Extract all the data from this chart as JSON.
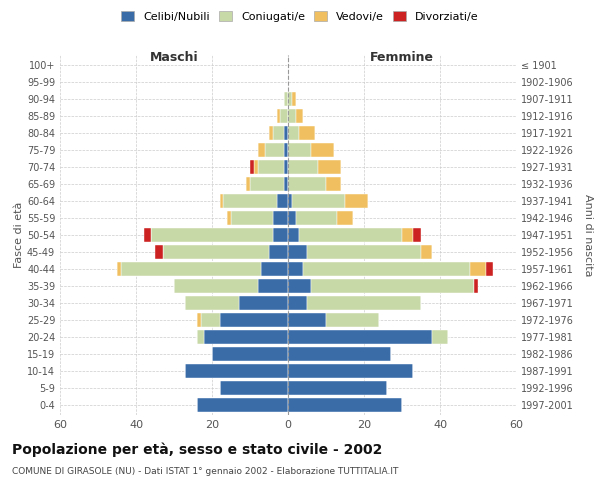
{
  "age_groups": [
    "0-4",
    "5-9",
    "10-14",
    "15-19",
    "20-24",
    "25-29",
    "30-34",
    "35-39",
    "40-44",
    "45-49",
    "50-54",
    "55-59",
    "60-64",
    "65-69",
    "70-74",
    "75-79",
    "80-84",
    "85-89",
    "90-94",
    "95-99",
    "100+"
  ],
  "birth_years": [
    "1997-2001",
    "1992-1996",
    "1987-1991",
    "1982-1986",
    "1977-1981",
    "1972-1976",
    "1967-1971",
    "1962-1966",
    "1957-1961",
    "1952-1956",
    "1947-1951",
    "1942-1946",
    "1937-1941",
    "1932-1936",
    "1927-1931",
    "1922-1926",
    "1917-1921",
    "1912-1916",
    "1907-1911",
    "1902-1906",
    "≤ 1901"
  ],
  "male_celibe": [
    24,
    18,
    27,
    20,
    22,
    18,
    13,
    8,
    7,
    5,
    4,
    4,
    3,
    1,
    1,
    1,
    1,
    0,
    0,
    0,
    0
  ],
  "male_coniugato": [
    0,
    0,
    0,
    0,
    2,
    5,
    14,
    22,
    37,
    28,
    32,
    11,
    14,
    9,
    7,
    5,
    3,
    2,
    1,
    0,
    0
  ],
  "male_vedovo": [
    0,
    0,
    0,
    0,
    0,
    1,
    0,
    0,
    1,
    0,
    0,
    1,
    1,
    1,
    1,
    2,
    1,
    1,
    0,
    0,
    0
  ],
  "male_divorziato": [
    0,
    0,
    0,
    0,
    0,
    0,
    0,
    0,
    0,
    2,
    2,
    0,
    0,
    0,
    1,
    0,
    0,
    0,
    0,
    0,
    0
  ],
  "female_celibe": [
    30,
    26,
    33,
    27,
    38,
    10,
    5,
    6,
    4,
    5,
    3,
    2,
    1,
    0,
    0,
    0,
    0,
    0,
    0,
    0,
    0
  ],
  "female_coniugato": [
    0,
    0,
    0,
    0,
    4,
    14,
    30,
    43,
    44,
    30,
    27,
    11,
    14,
    10,
    8,
    6,
    3,
    2,
    1,
    0,
    0
  ],
  "female_vedovo": [
    0,
    0,
    0,
    0,
    0,
    0,
    0,
    0,
    4,
    3,
    3,
    4,
    6,
    4,
    6,
    6,
    4,
    2,
    1,
    0,
    0
  ],
  "female_divorziato": [
    0,
    0,
    0,
    0,
    0,
    0,
    0,
    1,
    2,
    0,
    2,
    0,
    0,
    0,
    0,
    0,
    0,
    0,
    0,
    0,
    0
  ],
  "color_celibe": "#3a6ca8",
  "color_coniugato": "#c8d9a8",
  "color_vedovo": "#f0c060",
  "color_divorziato": "#cc2222",
  "xlim": 60,
  "title": "Popolazione per età, sesso e stato civile - 2002",
  "subtitle": "COMUNE DI GIRASOLE (NU) - Dati ISTAT 1° gennaio 2002 - Elaborazione TUTTITALIA.IT",
  "ylabel_left": "Fasce di età",
  "ylabel_right": "Anni di nascita",
  "xlabel_maschi": "Maschi",
  "xlabel_femmine": "Femmine",
  "bg_color": "#ffffff",
  "grid_color": "#cccccc",
  "bar_edge_color": "#ffffff",
  "bar_height": 0.8
}
